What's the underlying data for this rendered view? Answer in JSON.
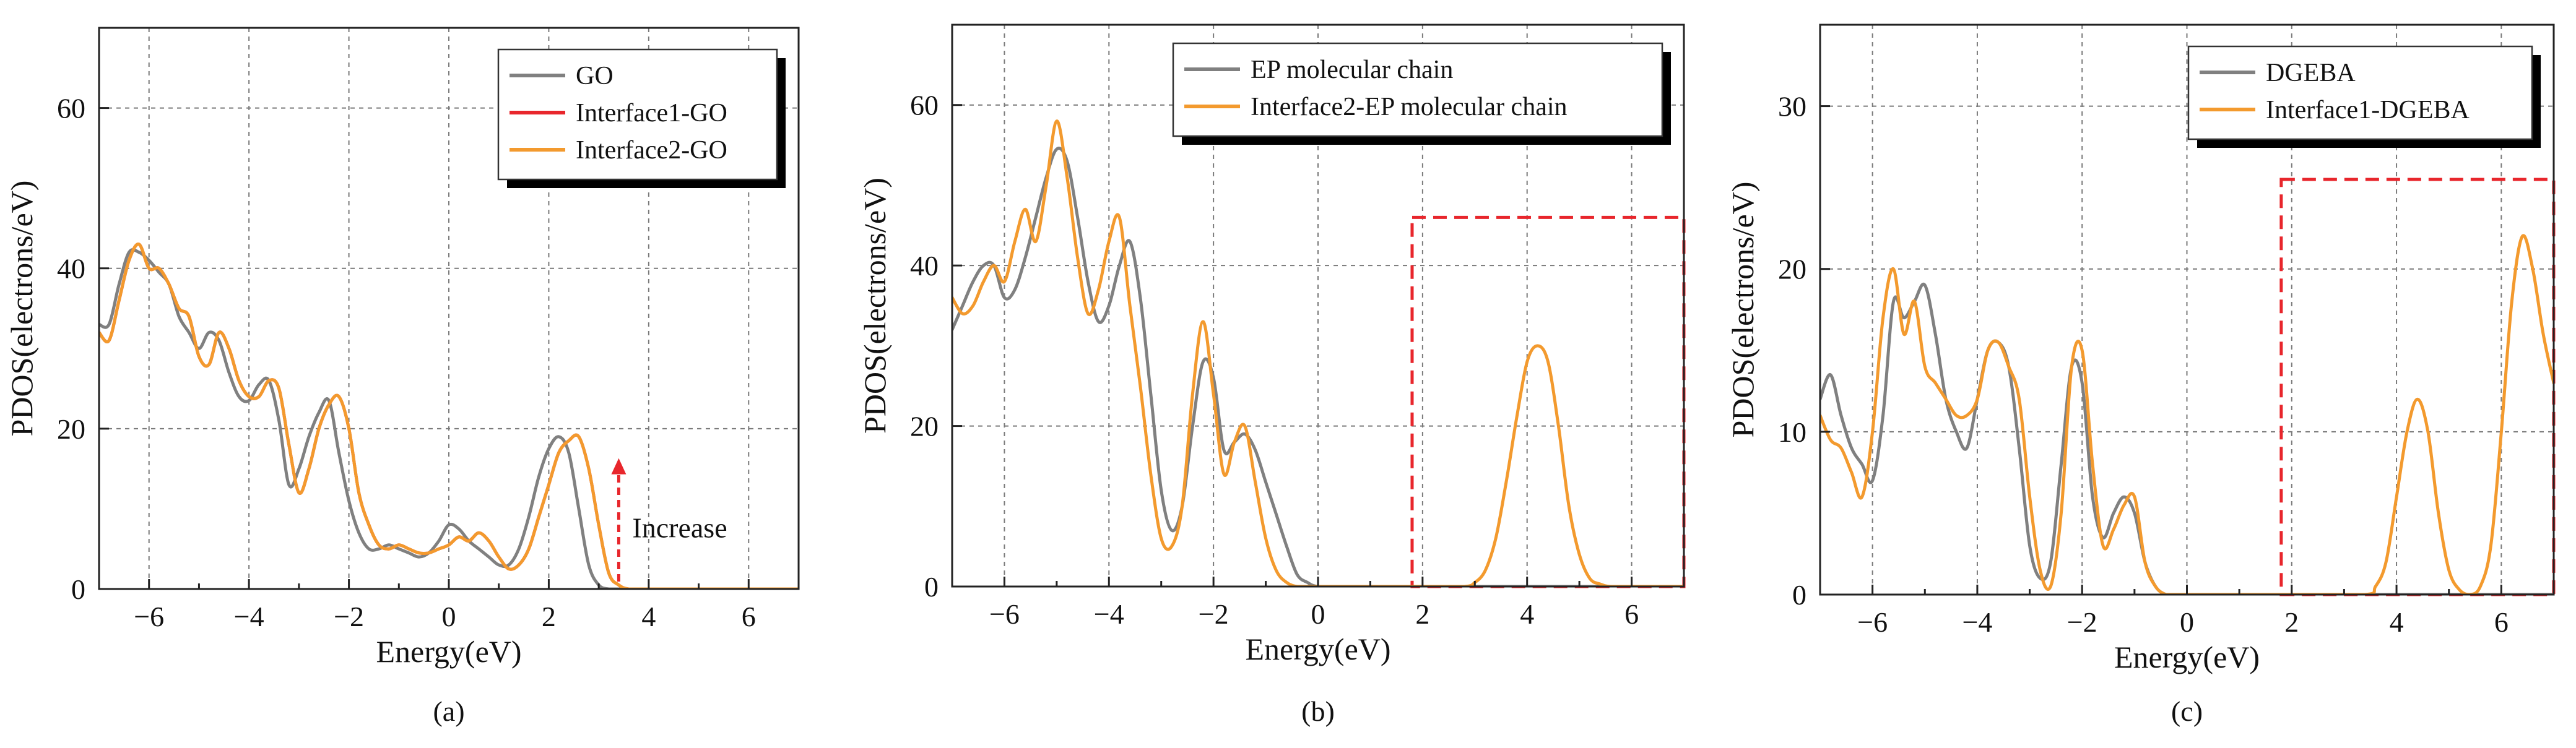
{
  "figure": {
    "panel_labels": [
      "(a)",
      "(b)",
      "(c)"
    ]
  },
  "chart_data": [
    {
      "type": "line",
      "panel_label": "(a)",
      "xlabel": "Energy(eV)",
      "ylabel": "PDOS(electrons/eV)",
      "xlim": [
        -7,
        7
      ],
      "ylim": [
        0,
        70
      ],
      "xticks": [
        -6,
        -4,
        -2,
        0,
        2,
        4,
        6
      ],
      "yticks": [
        0,
        20,
        40,
        60
      ],
      "grid": true,
      "legend_position": "top-right",
      "series": [
        {
          "name": "GO",
          "color": "#808080",
          "x": [
            -7.0,
            -6.8,
            -6.6,
            -6.4,
            -6.2,
            -6.0,
            -5.8,
            -5.6,
            -5.4,
            -5.2,
            -5.0,
            -4.8,
            -4.6,
            -4.4,
            -4.2,
            -4.0,
            -3.8,
            -3.6,
            -3.4,
            -3.2,
            -3.0,
            -2.8,
            -2.6,
            -2.4,
            -2.2,
            -2.0,
            -1.8,
            -1.6,
            -1.4,
            -1.2,
            -1.0,
            -0.8,
            -0.6,
            -0.4,
            -0.2,
            0.0,
            0.2,
            0.4,
            0.6,
            0.8,
            1.0,
            1.2,
            1.4,
            1.6,
            1.8,
            2.0,
            2.2,
            2.4,
            2.6,
            2.8,
            3.0,
            3.2,
            3.4,
            3.6,
            4.0,
            5.0,
            6.0,
            7.0
          ],
          "values": [
            33,
            33,
            38,
            42,
            42,
            41,
            39.5,
            38,
            34,
            32,
            30,
            32,
            31,
            27,
            24,
            23.5,
            25.5,
            26,
            21,
            13,
            15,
            19,
            22,
            23.5,
            17,
            11,
            7,
            5,
            5,
            5.5,
            5,
            4.5,
            4,
            4.5,
            6,
            8,
            7.5,
            6,
            5,
            4,
            3,
            3,
            5,
            9,
            14,
            17.5,
            19,
            17,
            10,
            3,
            0.5,
            0,
            0,
            0,
            0,
            0,
            0,
            0
          ]
        },
        {
          "name": "Interface1-GO",
          "color": "#e8262c",
          "x": [
            -7.0,
            -6.8,
            -6.6,
            -6.4,
            -6.2,
            -6.0,
            -5.8,
            -5.6,
            -5.4,
            -5.2,
            -5.0,
            -4.8,
            -4.6,
            -4.4,
            -4.2,
            -4.0,
            -3.8,
            -3.6,
            -3.4,
            -3.2,
            -3.0,
            -2.8,
            -2.6,
            -2.4,
            -2.2,
            -2.0,
            -1.8,
            -1.6,
            -1.4,
            -1.2,
            -1.0,
            -0.8,
            -0.6,
            -0.4,
            -0.2,
            0.0,
            0.2,
            0.4,
            0.6,
            0.8,
            1.0,
            1.2,
            1.4,
            1.6,
            1.8,
            2.0,
            2.2,
            2.4,
            2.6,
            2.8,
            3.0,
            3.2,
            3.4,
            3.6,
            4.0,
            5.0,
            6.0,
            7.0
          ],
          "values": [
            32,
            31,
            36,
            41,
            43,
            40,
            40,
            38,
            35,
            34,
            29,
            28,
            32,
            30,
            26,
            24,
            24,
            26,
            25,
            18,
            12,
            15,
            20,
            23,
            24,
            20,
            12,
            8,
            5.5,
            5,
            5.5,
            5,
            4.5,
            4.5,
            5,
            5.5,
            6.5,
            6,
            7,
            6,
            4,
            2.5,
            3,
            5,
            9,
            13,
            17,
            18.5,
            19,
            15,
            8,
            2,
            0.5,
            0,
            0,
            0,
            0,
            0
          ]
        },
        {
          "name": "Interface2-GO",
          "color": "#f39a2e",
          "x": [
            -7.0,
            -6.8,
            -6.6,
            -6.4,
            -6.2,
            -6.0,
            -5.8,
            -5.6,
            -5.4,
            -5.2,
            -5.0,
            -4.8,
            -4.6,
            -4.4,
            -4.2,
            -4.0,
            -3.8,
            -3.6,
            -3.4,
            -3.2,
            -3.0,
            -2.8,
            -2.6,
            -2.4,
            -2.2,
            -2.0,
            -1.8,
            -1.6,
            -1.4,
            -1.2,
            -1.0,
            -0.8,
            -0.6,
            -0.4,
            -0.2,
            0.0,
            0.2,
            0.4,
            0.6,
            0.8,
            1.0,
            1.2,
            1.4,
            1.6,
            1.8,
            2.0,
            2.2,
            2.4,
            2.6,
            2.8,
            3.0,
            3.2,
            3.4,
            3.6,
            4.0,
            5.0,
            6.0,
            7.0
          ],
          "values": [
            32,
            31,
            36,
            41,
            43,
            40,
            40,
            38,
            35,
            34,
            29,
            28,
            32,
            30,
            26,
            24,
            24,
            26,
            25,
            18,
            12,
            15,
            20,
            23,
            24,
            20,
            12,
            8,
            5.5,
            5,
            5.5,
            5,
            4.5,
            4.5,
            5,
            5.5,
            6.5,
            6,
            7,
            6,
            4,
            2.5,
            3,
            5,
            9,
            13,
            17,
            18.5,
            19,
            15,
            8,
            2,
            0.5,
            0,
            0,
            0,
            0,
            0
          ]
        }
      ],
      "annotation": {
        "text": "Increase",
        "arrow_x": 3.4,
        "arrow_y_from": 0,
        "arrow_y_to": 16
      }
    },
    {
      "type": "line",
      "panel_label": "(b)",
      "xlabel": "Energy(eV)",
      "ylabel": "PDOS(electrons/eV)",
      "xlim": [
        -7,
        7
      ],
      "ylim": [
        0,
        70
      ],
      "xticks": [
        -6,
        -4,
        -2,
        0,
        2,
        4,
        6
      ],
      "yticks": [
        0,
        20,
        40,
        60
      ],
      "grid": true,
      "legend_position": "top-right",
      "series": [
        {
          "name": "EP molecular chain",
          "color": "#808080",
          "x": [
            -7.0,
            -6.8,
            -6.6,
            -6.4,
            -6.2,
            -6.0,
            -5.8,
            -5.6,
            -5.4,
            -5.2,
            -5.0,
            -4.8,
            -4.6,
            -4.4,
            -4.2,
            -4.0,
            -3.8,
            -3.6,
            -3.4,
            -3.2,
            -3.0,
            -2.8,
            -2.6,
            -2.4,
            -2.2,
            -2.0,
            -1.8,
            -1.6,
            -1.4,
            -1.2,
            -1.0,
            -0.8,
            -0.6,
            -0.4,
            -0.2,
            0.0,
            0.5,
            1.0,
            2.0,
            3.0,
            4.0,
            5.0,
            6.0,
            7.0
          ],
          "values": [
            32,
            35,
            38,
            40,
            40,
            36,
            37,
            41,
            46,
            51,
            54.5,
            53,
            46,
            38,
            33,
            35,
            40,
            43,
            36,
            24,
            12,
            7,
            10,
            20,
            28,
            26,
            17,
            18,
            19,
            17,
            13,
            9,
            5,
            1.5,
            0.5,
            0,
            0,
            0,
            0,
            0,
            0,
            0,
            0,
            0
          ]
        },
        {
          "name": "Interface2-EP molecular chain",
          "color": "#f39a2e",
          "x": [
            -7.0,
            -6.8,
            -6.6,
            -6.4,
            -6.2,
            -6.0,
            -5.8,
            -5.6,
            -5.4,
            -5.2,
            -5.0,
            -4.8,
            -4.6,
            -4.4,
            -4.2,
            -4.0,
            -3.8,
            -3.6,
            -3.4,
            -3.2,
            -3.0,
            -2.8,
            -2.6,
            -2.4,
            -2.2,
            -2.0,
            -1.8,
            -1.6,
            -1.4,
            -1.2,
            -1.0,
            -0.8,
            -0.6,
            -0.4,
            -0.2,
            0.0,
            1.0,
            2.0,
            2.8,
            3.0,
            3.2,
            3.4,
            3.6,
            3.8,
            4.0,
            4.2,
            4.4,
            4.6,
            4.8,
            5.0,
            5.2,
            5.4,
            5.6,
            6.0,
            7.0
          ],
          "values": [
            36,
            34,
            35,
            38,
            40,
            38,
            43,
            47,
            43,
            50,
            58,
            51,
            41,
            34,
            37,
            43,
            46,
            35,
            25,
            14,
            6,
            5,
            10,
            24,
            33,
            24,
            14,
            18,
            20,
            13,
            6,
            2,
            0.5,
            0,
            0,
            0,
            0,
            0,
            0,
            0.5,
            2,
            6,
            13,
            21,
            28,
            30,
            28,
            20,
            10,
            4,
            1,
            0.3,
            0,
            0,
            0
          ]
        }
      ],
      "highlight_region": {
        "x_range": [
          1.8,
          7
        ],
        "y_range": [
          0,
          46
        ]
      }
    },
    {
      "type": "line",
      "panel_label": "(c)",
      "xlabel": "Energy(eV)",
      "ylabel": "PDOS(electrons/eV)",
      "xlim": [
        -7,
        7
      ],
      "ylim": [
        0,
        35
      ],
      "xticks": [
        -6,
        -4,
        -2,
        0,
        2,
        4,
        6
      ],
      "yticks": [
        0,
        10,
        20,
        30
      ],
      "grid": true,
      "legend_position": "top-right",
      "series": [
        {
          "name": "DGEBA",
          "color": "#808080",
          "x": [
            -7.0,
            -6.8,
            -6.6,
            -6.4,
            -6.2,
            -6.0,
            -5.8,
            -5.6,
            -5.4,
            -5.2,
            -5.0,
            -4.8,
            -4.6,
            -4.4,
            -4.2,
            -4.0,
            -3.8,
            -3.6,
            -3.4,
            -3.2,
            -3.0,
            -2.8,
            -2.6,
            -2.4,
            -2.2,
            -2.0,
            -1.8,
            -1.6,
            -1.4,
            -1.2,
            -1.0,
            -0.8,
            -0.6,
            -0.4,
            -0.2,
            0.0,
            1.0,
            2.0,
            4.0,
            5.0,
            6.0,
            7.0
          ],
          "values": [
            12,
            13.5,
            11,
            9,
            8,
            7,
            11,
            18,
            17,
            18,
            19,
            16,
            12,
            10,
            9,
            12,
            15,
            15.5,
            14,
            9,
            3,
            1,
            2,
            8,
            14,
            13,
            6,
            3.5,
            5,
            6,
            5,
            2,
            0.5,
            0,
            0,
            0,
            0,
            0,
            0,
            0,
            0,
            0
          ]
        },
        {
          "name": "Interface1-DGEBA",
          "color": "#f39a2e",
          "x": [
            -7.0,
            -6.8,
            -6.6,
            -6.4,
            -6.2,
            -6.0,
            -5.8,
            -5.6,
            -5.4,
            -5.2,
            -5.0,
            -4.8,
            -4.6,
            -4.4,
            -4.2,
            -4.0,
            -3.8,
            -3.6,
            -3.4,
            -3.2,
            -3.0,
            -2.8,
            -2.6,
            -2.4,
            -2.2,
            -2.0,
            -1.8,
            -1.6,
            -1.4,
            -1.2,
            -1.0,
            -0.8,
            -0.6,
            -0.4,
            -0.2,
            0.0,
            1.0,
            2.0,
            3.4,
            3.6,
            3.8,
            4.0,
            4.2,
            4.4,
            4.6,
            4.8,
            5.0,
            5.2,
            5.4,
            5.6,
            5.8,
            6.0,
            6.2,
            6.4,
            6.6,
            6.8,
            7.0
          ],
          "values": [
            11,
            9.5,
            9,
            7.5,
            6,
            10,
            17,
            20,
            16,
            18,
            14,
            13,
            12,
            11,
            11,
            12,
            15,
            15.5,
            14,
            12,
            6,
            1.5,
            0.5,
            5,
            14,
            15,
            8,
            3,
            4,
            5.5,
            6,
            2,
            0.5,
            0,
            0,
            0,
            0,
            0,
            0,
            0.5,
            2,
            6,
            10,
            12,
            10,
            5,
            1.5,
            0.3,
            0,
            0.5,
            3,
            10,
            18,
            22,
            20,
            16,
            13
          ]
        }
      ],
      "highlight_region": {
        "x_range": [
          1.8,
          7
        ],
        "y_range": [
          0,
          25.5
        ]
      }
    }
  ]
}
